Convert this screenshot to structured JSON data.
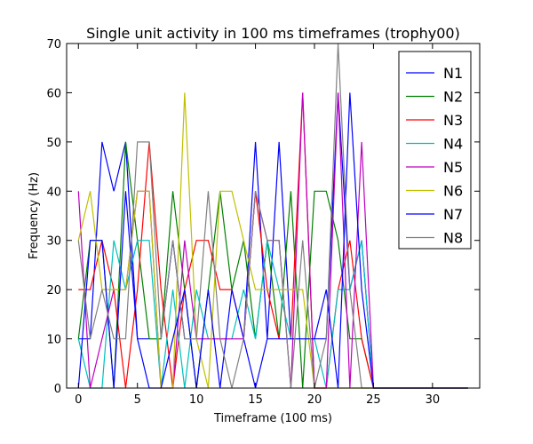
{
  "chart_data": {
    "type": "line",
    "title": "Single unit activity in 100 ms timeframes (trophy00)",
    "xlabel": "Timeframe (100 ms)",
    "ylabel": "Frequency (Hz)",
    "xlim": [
      -1,
      34
    ],
    "ylim": [
      0,
      70
    ],
    "xticks": [
      0,
      5,
      10,
      15,
      20,
      25,
      30
    ],
    "yticks": [
      0,
      10,
      20,
      30,
      40,
      50,
      60,
      70
    ],
    "grid": false,
    "legend_position": "top-right",
    "x": [
      0,
      1,
      2,
      3,
      4,
      5,
      6,
      7,
      8,
      9,
      10,
      11,
      12,
      13,
      14,
      15,
      16,
      17,
      18,
      19,
      20,
      21,
      22,
      23,
      24,
      25,
      26,
      27,
      28,
      29,
      30,
      31,
      32,
      33
    ],
    "series": [
      {
        "name": "N1",
        "color": "#0000ff",
        "values": [
          10,
          10,
          50,
          40,
          50,
          10,
          10,
          10,
          30,
          10,
          10,
          10,
          10,
          10,
          10,
          50,
          10,
          50,
          10,
          10,
          10,
          10,
          60,
          20,
          30,
          0,
          0,
          0,
          0,
          0,
          0,
          0,
          0,
          0
        ]
      },
      {
        "name": "N2",
        "color": "#008000",
        "values": [
          10,
          30,
          30,
          0,
          50,
          30,
          10,
          10,
          40,
          20,
          0,
          20,
          40,
          20,
          30,
          10,
          30,
          10,
          40,
          0,
          40,
          40,
          30,
          10,
          10,
          0,
          0,
          0,
          0,
          0,
          0,
          0,
          0,
          0
        ]
      },
      {
        "name": "N3",
        "color": "#ff0000",
        "values": [
          20,
          20,
          30,
          20,
          0,
          20,
          50,
          20,
          0,
          20,
          30,
          30,
          20,
          20,
          10,
          40,
          20,
          10,
          10,
          60,
          0,
          0,
          20,
          30,
          10,
          0,
          0,
          0,
          0,
          0,
          0,
          0,
          0,
          0
        ]
      },
      {
        "name": "N4",
        "color": "#00bfbf",
        "values": [
          10,
          0,
          0,
          30,
          20,
          30,
          30,
          0,
          20,
          0,
          20,
          10,
          10,
          10,
          20,
          10,
          30,
          20,
          10,
          10,
          10,
          0,
          20,
          20,
          30,
          0,
          0,
          0,
          0,
          0,
          0,
          0,
          0,
          0
        ]
      },
      {
        "name": "N5",
        "color": "#bf00bf",
        "values": [
          40,
          0,
          10,
          20,
          20,
          40,
          40,
          0,
          0,
          30,
          10,
          10,
          10,
          10,
          10,
          40,
          30,
          30,
          0,
          60,
          0,
          0,
          60,
          0,
          50,
          0,
          0,
          0,
          0,
          0,
          0,
          0,
          0,
          0
        ]
      },
      {
        "name": "N6",
        "color": "#bfbf00",
        "values": [
          30,
          40,
          20,
          20,
          20,
          40,
          40,
          0,
          0,
          60,
          10,
          0,
          40,
          40,
          30,
          20,
          20,
          20,
          20,
          20,
          0,
          0,
          0,
          0,
          0,
          0,
          0,
          0,
          0,
          0,
          0,
          0,
          0,
          0
        ]
      },
      {
        "name": "N7",
        "color": "#0000ff",
        "values": [
          0,
          30,
          30,
          0,
          40,
          10,
          0,
          0,
          10,
          20,
          0,
          20,
          0,
          20,
          10,
          0,
          10,
          10,
          10,
          10,
          10,
          20,
          0,
          60,
          20,
          0,
          0,
          0,
          0,
          0,
          0,
          0,
          0,
          0
        ]
      },
      {
        "name": "N8",
        "color": "#808080",
        "values": [
          30,
          10,
          20,
          10,
          10,
          50,
          50,
          10,
          30,
          10,
          10,
          40,
          10,
          0,
          10,
          40,
          30,
          30,
          0,
          30,
          0,
          10,
          70,
          20,
          0,
          0,
          0,
          0,
          0,
          0,
          0,
          0,
          0,
          0
        ]
      }
    ]
  }
}
